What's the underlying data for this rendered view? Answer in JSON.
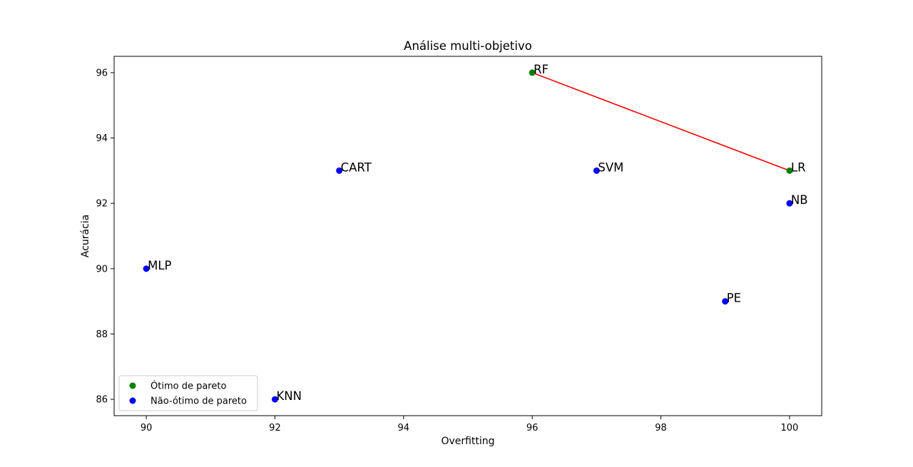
{
  "chart_data": {
    "type": "scatter",
    "title": "Análise multi-objetivo",
    "xlabel": "Overfitting",
    "ylabel": "Acurácia",
    "xlim": [
      89.5,
      100.5
    ],
    "ylim": [
      85.5,
      96.5
    ],
    "xticks": [
      "90",
      "92",
      "94",
      "96",
      "98",
      "100"
    ],
    "yticks": [
      "86",
      "88",
      "90",
      "92",
      "94",
      "96"
    ],
    "grid": false,
    "legend_position": "lower-left",
    "series": [
      {
        "name": "Ótimo de pareto",
        "color": "#008000",
        "points": [
          {
            "label": "RF",
            "x": 96,
            "y": 96
          },
          {
            "label": "LR",
            "x": 100,
            "y": 93
          }
        ]
      },
      {
        "name": "Não-ótimo de pareto",
        "color": "#0000ff",
        "points": [
          {
            "label": "CART",
            "x": 93,
            "y": 93
          },
          {
            "label": "SVM",
            "x": 97,
            "y": 93
          },
          {
            "label": "NB",
            "x": 100,
            "y": 92
          },
          {
            "label": "MLP",
            "x": 90,
            "y": 90
          },
          {
            "label": "PE",
            "x": 99,
            "y": 89
          },
          {
            "label": "KNN",
            "x": 92,
            "y": 86
          }
        ]
      }
    ],
    "pareto_front": {
      "color": "#ff0000",
      "points": [
        {
          "x": 96,
          "y": 96
        },
        {
          "x": 100,
          "y": 93
        }
      ]
    }
  }
}
